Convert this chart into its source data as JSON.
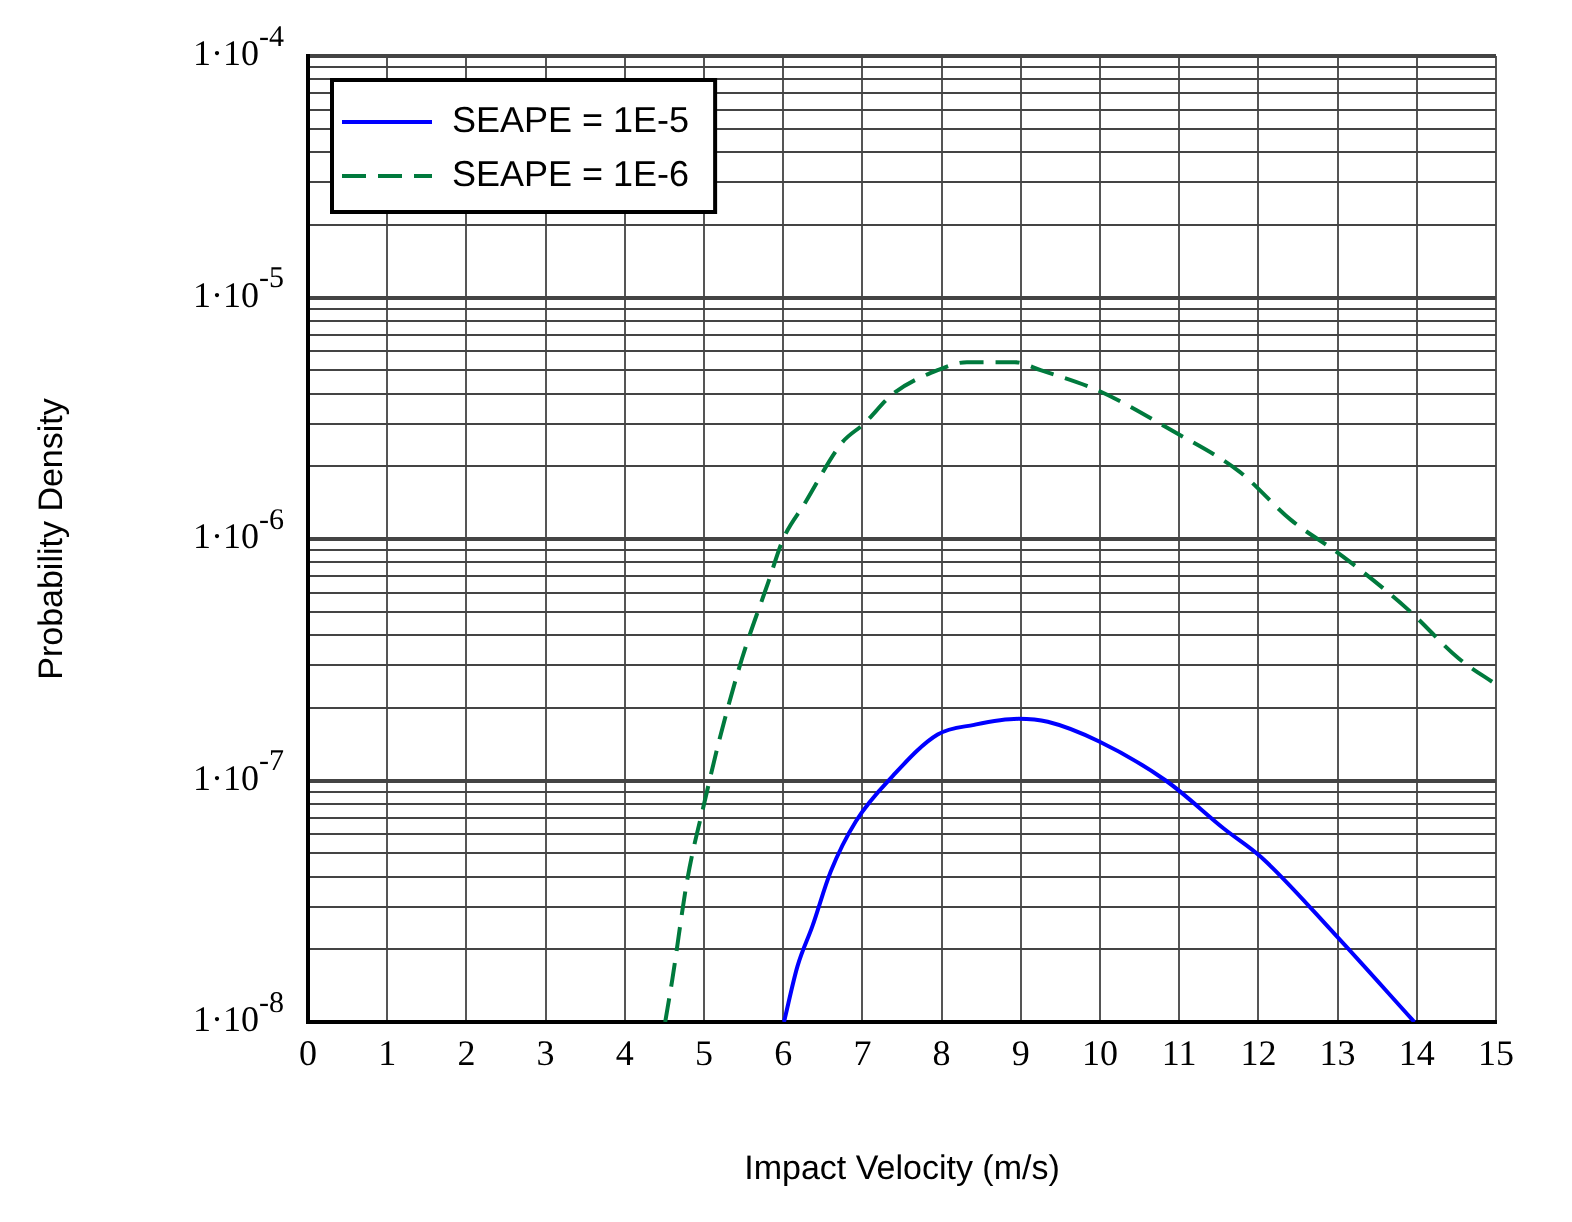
{
  "chart_data": {
    "type": "line",
    "xlabel": "Impact Velocity (m/s)",
    "ylabel": "Probability Density",
    "log": "y",
    "grid": true,
    "legend": "top left",
    "marker": "none",
    "xlim": [
      0,
      15
    ],
    "xticks": [
      0,
      1,
      2,
      3,
      4,
      5,
      6,
      7,
      8,
      9,
      10,
      11,
      12,
      13,
      14,
      15
    ],
    "ylim": [
      1e-08,
      0.0001
    ],
    "yticks": [
      {
        "value": 1e-08,
        "label": "1·10$^{-8}$"
      },
      {
        "value": 2e-08,
        "label": null
      },
      {
        "value": 3e-08,
        "label": null
      },
      {
        "value": 4e-08,
        "label": null
      },
      {
        "value": 5e-08,
        "label": null
      },
      {
        "value": 6e-08,
        "label": null
      },
      {
        "value": 7e-08,
        "label": null
      },
      {
        "value": 8e-08,
        "label": null
      },
      {
        "value": 9e-08,
        "label": null
      },
      {
        "value": 1e-07,
        "label": "1·10$^{-7}$"
      },
      {
        "value": 2e-07,
        "label": null
      },
      {
        "value": 3e-07,
        "label": null
      },
      {
        "value": 4e-07,
        "label": null
      },
      {
        "value": 5e-07,
        "label": null
      },
      {
        "value": 6e-07,
        "label": null
      },
      {
        "value": 7e-07,
        "label": null
      },
      {
        "value": 8e-07,
        "label": null
      },
      {
        "value": 9e-07,
        "label": null
      },
      {
        "value": 1e-06,
        "label": "1·10$^{-6}$"
      },
      {
        "value": 2e-06,
        "label": null
      },
      {
        "value": 3e-06,
        "label": null
      },
      {
        "value": 4e-06,
        "label": null
      },
      {
        "value": 5e-06,
        "label": null
      },
      {
        "value": 6e-06,
        "label": null
      },
      {
        "value": 7e-06,
        "label": null
      },
      {
        "value": 8e-06,
        "label": null
      },
      {
        "value": 9e-06,
        "label": null
      },
      {
        "value": 1e-05,
        "label": "1·10$^{-5}$"
      },
      {
        "value": 2e-05,
        "label": null
      },
      {
        "value": 3e-05,
        "label": null
      },
      {
        "value": 4e-05,
        "label": null
      },
      {
        "value": 5e-05,
        "label": null
      },
      {
        "value": 6e-05,
        "label": null
      },
      {
        "value": 7e-05,
        "label": null
      },
      {
        "value": 8e-05,
        "label": null
      },
      {
        "value": 9e-05,
        "label": null
      },
      {
        "value": 0.0001,
        "label": "1·10$^{-4}$"
      }
    ],
    "series": [
      {
        "name": "SEAPE = 1E-5",
        "color": "#0000ff",
        "line_style": "solid",
        "x": [
          6.01,
          6.18,
          6.37,
          6.6,
          6.92,
          7.39,
          7.95,
          8.41,
          8.97,
          9.34,
          9.99,
          10.83,
          11.57,
          12.04,
          12.97,
          13.97
        ],
        "values": [
          1e-08,
          1.7e-08,
          2.5e-08,
          4.2e-08,
          6.8e-08,
          1.05e-07,
          1.55e-07,
          1.7e-07,
          1.8e-07,
          1.75e-07,
          1.45e-07,
          1e-07,
          6.3e-08,
          4.8e-08,
          2.3e-08,
          1e-08
        ]
      },
      {
        "name": "SEAPE = 1E-6",
        "color": "#007a3d",
        "line_style": "dashed",
        "x": [
          4.51,
          4.6,
          4.79,
          5.02,
          5.2,
          5.48,
          5.81,
          6.0,
          6.27,
          6.74,
          7.02,
          7.39,
          7.95,
          8.32,
          8.92,
          9.25,
          9.99,
          10.92,
          11.76,
          12.41,
          13.06,
          13.89,
          14.53,
          15
        ],
        "values": [
          1e-08,
          1.5e-08,
          3.9e-08,
          8.5e-08,
          1.5e-07,
          3.2e-07,
          6.6e-07,
          1e-06,
          1.4e-06,
          2.5e-06,
          3e-06,
          4e-06,
          5e-06,
          5.4e-06,
          5.4e-06,
          5e-06,
          4.1e-06,
          2.8e-06,
          1.9e-06,
          1.2e-06,
          8.5e-07,
          5.1e-07,
          3.2e-07,
          2.5e-07
        ]
      }
    ]
  }
}
